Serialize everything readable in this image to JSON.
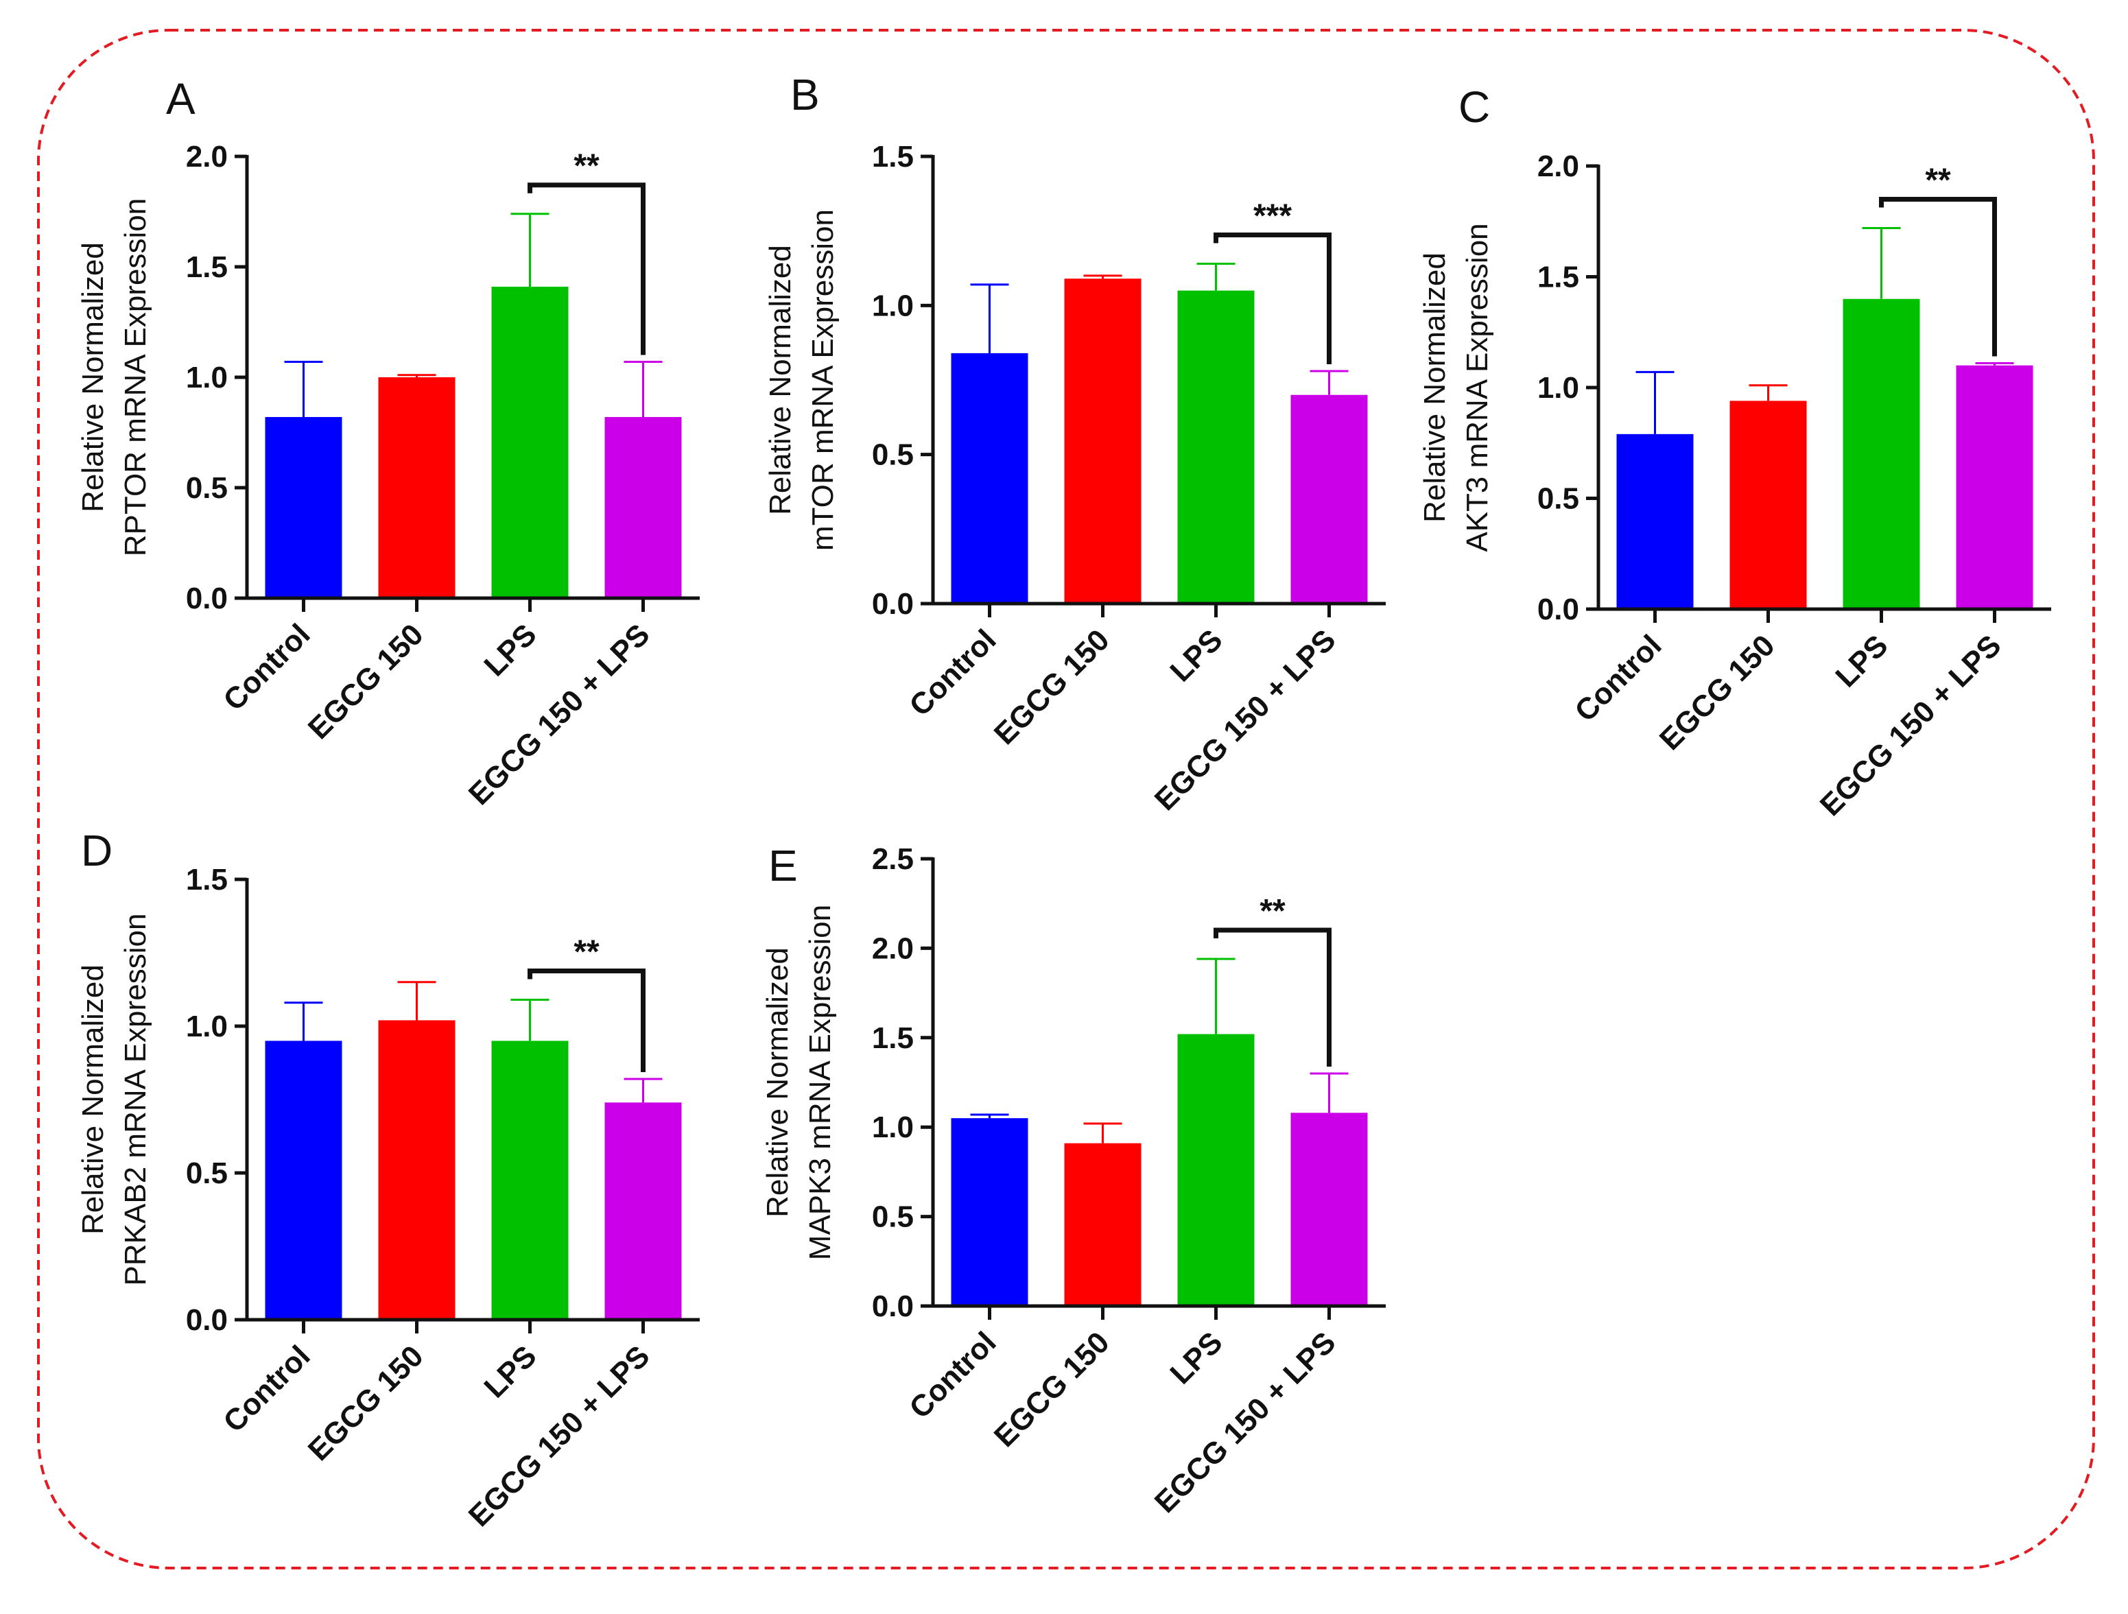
{
  "figure": {
    "border_color": "#e31b23",
    "categories": [
      "Control",
      "EGCG 150",
      "LPS",
      "EGCG 150 + LPS"
    ],
    "bar_colors": [
      "#0000ff",
      "#ff0000",
      "#00c000",
      "#cc00e8"
    ]
  },
  "chart_data": [
    {
      "panel": "A",
      "type": "bar",
      "ylabel_line1": "Relative Normalized",
      "ylabel_line2": "RPTOR mRNA Expression",
      "ylim": [
        0,
        2.0
      ],
      "yticks": [
        "0.0",
        "0.5",
        "1.0",
        "1.5",
        "2.0"
      ],
      "ytick_values": [
        0,
        0.5,
        1.0,
        1.5,
        2.0
      ],
      "values": [
        0.82,
        1.0,
        1.41,
        0.82
      ],
      "errors": [
        0.25,
        0.01,
        0.33,
        0.25
      ],
      "significance": {
        "from": 2,
        "to": 3,
        "label": "**"
      }
    },
    {
      "panel": "B",
      "type": "bar",
      "ylabel_line1": "Relative Normalized",
      "ylabel_line2": "mTOR mRNA Expression",
      "ylim": [
        0,
        1.5
      ],
      "yticks": [
        "0.0",
        "0.5",
        "1.0",
        "1.5"
      ],
      "ytick_values": [
        0,
        0.5,
        1.0,
        1.5
      ],
      "values": [
        0.84,
        1.09,
        1.05,
        0.7
      ],
      "errors": [
        0.23,
        0.01,
        0.09,
        0.08
      ],
      "significance": {
        "from": 2,
        "to": 3,
        "label": "***"
      }
    },
    {
      "panel": "C",
      "type": "bar",
      "ylabel_line1": "Relative Normalized",
      "ylabel_line2": "AKT3 mRNA Expression",
      "ylim": [
        0,
        2.0
      ],
      "yticks": [
        "0.0",
        "0.5",
        "1.0",
        "1.5",
        "2.0"
      ],
      "ytick_values": [
        0,
        0.5,
        1.0,
        1.5,
        2.0
      ],
      "values": [
        0.79,
        0.94,
        1.4,
        1.1
      ],
      "errors": [
        0.28,
        0.07,
        0.32,
        0.01
      ],
      "significance": {
        "from": 2,
        "to": 3,
        "label": "**"
      }
    },
    {
      "panel": "D",
      "type": "bar",
      "ylabel_line1": "Relative Normalized",
      "ylabel_line2": "PRKAB2 mRNA Expression",
      "ylim": [
        0,
        1.5
      ],
      "yticks": [
        "0.0",
        "0.5",
        "1.0",
        "1.5"
      ],
      "ytick_values": [
        0,
        0.5,
        1.0,
        1.5
      ],
      "values": [
        0.95,
        1.02,
        0.95,
        0.74
      ],
      "errors": [
        0.13,
        0.13,
        0.14,
        0.08
      ],
      "significance": {
        "from": 2,
        "to": 3,
        "label": "**"
      }
    },
    {
      "panel": "E",
      "type": "bar",
      "ylabel_line1": "Relative Normalized",
      "ylabel_line2": "MAPK3 mRNA Expression",
      "ylim": [
        0,
        2.5
      ],
      "yticks": [
        "0.0",
        "0.5",
        "1.0",
        "1.5",
        "2.0",
        "2.5"
      ],
      "ytick_values": [
        0,
        0.5,
        1.0,
        1.5,
        2.0,
        2.5
      ],
      "values": [
        1.05,
        0.91,
        1.52,
        1.08
      ],
      "errors": [
        0.02,
        0.11,
        0.42,
        0.22
      ],
      "significance": {
        "from": 2,
        "to": 3,
        "label": "**"
      }
    }
  ]
}
